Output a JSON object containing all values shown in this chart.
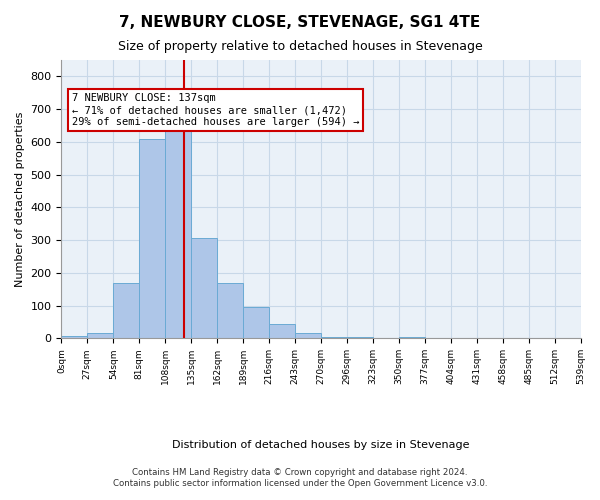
{
  "title": "7, NEWBURY CLOSE, STEVENAGE, SG1 4TE",
  "subtitle": "Size of property relative to detached houses in Stevenage",
  "xlabel": "Distribution of detached houses by size in Stevenage",
  "ylabel": "Number of detached properties",
  "bar_color": "#aec6e8",
  "bar_edge_color": "#6aaad4",
  "grid_color": "#c8d8e8",
  "background_color": "#eaf1f8",
  "bins": [
    "0sqm",
    "27sqm",
    "54sqm",
    "81sqm",
    "108sqm",
    "135sqm",
    "162sqm",
    "189sqm",
    "216sqm",
    "243sqm",
    "270sqm",
    "296sqm",
    "323sqm",
    "350sqm",
    "377sqm",
    "404sqm",
    "431sqm",
    "458sqm",
    "485sqm",
    "512sqm",
    "539sqm"
  ],
  "values": [
    8,
    15,
    170,
    610,
    650,
    307,
    168,
    97,
    43,
    15,
    5,
    4,
    0,
    5,
    0,
    0,
    0,
    0,
    0,
    0
  ],
  "ylim": [
    0,
    850
  ],
  "yticks": [
    0,
    100,
    200,
    300,
    400,
    500,
    600,
    700,
    800
  ],
  "property_size": 137,
  "property_bin_index": 4,
  "annotation_text": "7 NEWBURY CLOSE: 137sqm\n← 71% of detached houses are smaller (1,472)\n29% of semi-detached houses are larger (594) →",
  "annotation_box_color": "#ffffff",
  "annotation_border_color": "#cc0000",
  "vline_color": "#cc0000",
  "vline_x": 4.74,
  "footer_line1": "Contains HM Land Registry data © Crown copyright and database right 2024.",
  "footer_line2": "Contains public sector information licensed under the Open Government Licence v3.0."
}
